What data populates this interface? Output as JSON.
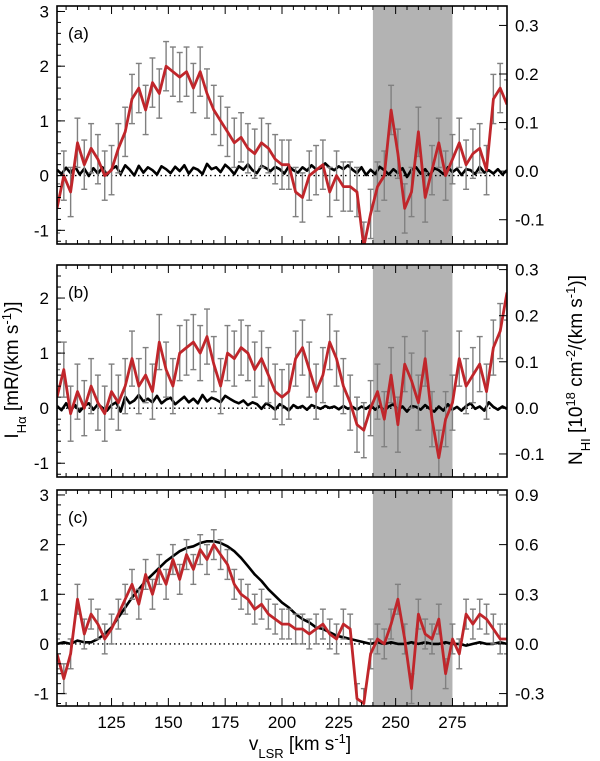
{
  "chart_data": [
    {
      "type": "line",
      "panel_label": "(a)",
      "xlim": [
        101,
        299
      ],
      "ylim_left": [
        -1.25,
        3.1
      ],
      "ylim_right": [
        -0.15,
        0.34
      ],
      "left_ticks": [
        -1,
        0,
        1,
        2,
        3
      ],
      "right_ticks": [
        -0.1,
        0.0,
        0.1,
        0.2,
        0.3
      ],
      "right_tick_labels": [
        "-0.1",
        "0.0",
        "0.1",
        "0.2",
        "0.3"
      ],
      "shaded_region": [
        240,
        275
      ],
      "zero_line": true,
      "series": [
        {
          "name": "H-alpha",
          "color": "#c0262b",
          "x": [
            101,
            104,
            107,
            110,
            113,
            116,
            119,
            122,
            125,
            128,
            131,
            134,
            137,
            140,
            143,
            146,
            149,
            152,
            155,
            158,
            161,
            164,
            167,
            170,
            173,
            176,
            179,
            182,
            185,
            188,
            191,
            194,
            197,
            200,
            203,
            206,
            209,
            212,
            215,
            218,
            221,
            224,
            227,
            230,
            233,
            236,
            239,
            242,
            245,
            248,
            251,
            254,
            257,
            260,
            263,
            266,
            269,
            272,
            275,
            278,
            281,
            284,
            287,
            290,
            293,
            296,
            299
          ],
          "y": [
            -0.6,
            0.0,
            -0.3,
            0.6,
            0.2,
            0.5,
            0.3,
            0.0,
            0.1,
            0.5,
            0.8,
            1.4,
            1.6,
            1.2,
            1.7,
            1.5,
            2.0,
            1.9,
            1.8,
            1.9,
            1.6,
            1.9,
            1.5,
            1.2,
            1.0,
            0.8,
            0.6,
            0.7,
            0.5,
            0.4,
            0.6,
            0.5,
            0.3,
            0.2,
            0.2,
            -0.3,
            -0.4,
            0.0,
            0.1,
            0.2,
            -0.3,
            0.0,
            -0.2,
            -0.2,
            -0.3,
            -1.3,
            -0.7,
            -0.2,
            0.0,
            1.2,
            0.4,
            -0.6,
            -0.3,
            0.8,
            -0.4,
            0.1,
            0.6,
            0.0,
            0.3,
            0.6,
            0.2,
            0.4,
            0.5,
            0.1,
            1.4,
            1.6,
            1.3
          ],
          "err": 0.45
        },
        {
          "name": "HI",
          "color": "#000000",
          "x": [
            101,
            103,
            105,
            107,
            109,
            111,
            113,
            115,
            117,
            119,
            121,
            123,
            125,
            127,
            129,
            131,
            133,
            135,
            137,
            139,
            141,
            143,
            145,
            147,
            149,
            151,
            153,
            155,
            157,
            159,
            161,
            163,
            165,
            167,
            169,
            171,
            173,
            175,
            177,
            179,
            181,
            183,
            185,
            187,
            189,
            191,
            193,
            195,
            197,
            199,
            201,
            203,
            205,
            207,
            209,
            211,
            213,
            215,
            217,
            219,
            221,
            223,
            225,
            227,
            229,
            231,
            233,
            235,
            237,
            239,
            241,
            243,
            245,
            247,
            249,
            251,
            253,
            255,
            257,
            259,
            261,
            263,
            265,
            267,
            269,
            271,
            273,
            275,
            277,
            279,
            281,
            283,
            285,
            287,
            289,
            291,
            293,
            295,
            297,
            299
          ],
          "y": [
            0.003,
            -0.006,
            0.007,
            -0.004,
            0.009,
            -0.007,
            0.005,
            -0.01,
            0.006,
            -0.005,
            0.008,
            -0.008,
            0.004,
            0.01,
            -0.006,
            0.012,
            0.003,
            -0.009,
            0.011,
            -0.003,
            0.008,
            0.002,
            -0.007,
            0.01,
            0.004,
            -0.004,
            0.009,
            0.0,
            0.012,
            -0.005,
            0.007,
            0.003,
            -0.006,
            0.015,
            0.004,
            0.008,
            -0.002,
            0.013,
            0.005,
            -0.006,
            0.01,
            0.003,
            0.014,
            0.002,
            -0.004,
            0.011,
            0.006,
            0.0,
            0.009,
            0.004,
            -0.005,
            0.01,
            0.002,
            -0.003,
            0.008,
            0.001,
            0.012,
            0.004,
            0.006,
            0.016,
            0.007,
            0.002,
            0.01,
            0.004,
            0.012,
            0.003,
            -0.004,
            0.008,
            -0.008,
            0.003,
            -0.006,
            0.009,
            0.002,
            -0.007,
            0.004,
            -0.004,
            0.006,
            -0.012,
            0.003,
            0.008,
            -0.005,
            0.004,
            -0.009,
            0.006,
            0.002,
            -0.006,
            0.008,
            -0.002,
            0.005,
            -0.008,
            0.004,
            0.002,
            -0.006,
            0.009,
            -0.003,
            0.002,
            -0.005,
            0.004,
            -0.007,
            0.002
          ]
        }
      ]
    },
    {
      "type": "line",
      "panel_label": "(b)",
      "xlim": [
        101,
        299
      ],
      "ylim_left": [
        -1.25,
        2.6
      ],
      "ylim_right": [
        -0.15,
        0.31
      ],
      "left_ticks": [
        -1,
        0,
        1,
        2
      ],
      "right_ticks": [
        -0.1,
        0.0,
        0.1,
        0.2,
        0.3
      ],
      "right_tick_labels": [
        "-0.1",
        "0.0",
        "0.1",
        "0.2",
        "0.3"
      ],
      "shaded_region": [
        240,
        275
      ],
      "zero_line": true,
      "series": [
        {
          "name": "H-alpha",
          "color": "#c0262b",
          "x": [
            101,
            104,
            107,
            110,
            113,
            116,
            119,
            122,
            125,
            128,
            131,
            134,
            137,
            140,
            143,
            146,
            149,
            152,
            155,
            158,
            161,
            164,
            167,
            170,
            173,
            176,
            179,
            182,
            185,
            188,
            191,
            194,
            197,
            200,
            203,
            206,
            209,
            212,
            215,
            218,
            221,
            224,
            227,
            230,
            233,
            236,
            239,
            242,
            245,
            248,
            251,
            254,
            257,
            260,
            263,
            266,
            269,
            272,
            275,
            278,
            281,
            284,
            287,
            290,
            293,
            296,
            299
          ],
          "y": [
            0.2,
            0.7,
            -0.1,
            0.3,
            0.0,
            0.4,
            0.1,
            -0.1,
            0.3,
            0.1,
            0.4,
            0.9,
            0.4,
            0.6,
            0.3,
            1.2,
            0.7,
            0.4,
            1.0,
            1.1,
            1.2,
            1.0,
            1.3,
            0.8,
            0.4,
            1.0,
            0.9,
            1.1,
            1.0,
            0.7,
            0.9,
            0.6,
            0.3,
            0.2,
            0.3,
            0.9,
            1.1,
            0.7,
            0.3,
            0.6,
            1.2,
            0.9,
            0.4,
            0.1,
            -0.3,
            -0.4,
            0.0,
            0.3,
            -0.2,
            0.6,
            -0.3,
            0.8,
            0.5,
            0.1,
            0.9,
            -0.2,
            -0.9,
            -0.2,
            0.1,
            0.9,
            0.4,
            0.6,
            0.8,
            0.3,
            1.1,
            1.4,
            2.1
          ],
          "err": 0.5
        },
        {
          "name": "HI",
          "color": "#000000",
          "x": [
            101,
            103,
            105,
            107,
            109,
            111,
            113,
            115,
            117,
            119,
            121,
            123,
            125,
            127,
            129,
            131,
            133,
            135,
            137,
            139,
            141,
            143,
            145,
            147,
            149,
            151,
            153,
            155,
            157,
            159,
            161,
            163,
            165,
            167,
            169,
            171,
            173,
            175,
            177,
            179,
            181,
            183,
            185,
            187,
            189,
            191,
            193,
            195,
            197,
            199,
            201,
            203,
            205,
            207,
            209,
            211,
            213,
            215,
            217,
            219,
            221,
            223,
            225,
            227,
            229,
            231,
            233,
            235,
            237,
            239,
            241,
            243,
            245,
            247,
            249,
            251,
            253,
            255,
            257,
            259,
            261,
            263,
            265,
            267,
            269,
            271,
            273,
            275,
            277,
            279,
            281,
            283,
            285,
            287,
            289,
            291,
            293,
            295,
            297,
            299
          ],
          "y": [
            0.004,
            -0.005,
            0.01,
            -0.006,
            0.006,
            -0.008,
            0.004,
            0.01,
            -0.004,
            0.008,
            0.0,
            -0.006,
            0.006,
            0.012,
            -0.008,
            0.024,
            0.01,
            0.016,
            0.028,
            0.014,
            0.02,
            0.012,
            0.026,
            0.01,
            0.018,
            0.022,
            0.008,
            0.016,
            0.024,
            0.012,
            0.02,
            0.01,
            0.028,
            0.014,
            0.022,
            0.018,
            0.012,
            0.026,
            0.02,
            0.014,
            0.01,
            0.016,
            0.006,
            0.012,
            0.008,
            -0.002,
            0.01,
            0.004,
            -0.004,
            0.008,
            0.002,
            -0.006,
            0.006,
            0.0,
            0.004,
            -0.004,
            0.006,
            0.002,
            -0.002,
            0.004,
            0.0,
            0.003,
            -0.003,
            0.004,
            -0.002,
            0.002,
            -0.004,
            0.003,
            -0.002,
            0.006,
            -0.004,
            0.004,
            -0.006,
            0.003,
            0.008,
            -0.004,
            0.003,
            -0.008,
            0.004,
            0.002,
            -0.004,
            0.006,
            -0.002,
            -0.008,
            0.003,
            -0.006,
            0.008,
            -0.004,
            0.002,
            -0.006,
            0.004,
            0.01,
            -0.002,
            0.003,
            -0.006,
            0.012,
            0.002,
            -0.004,
            0.003,
            -0.002
          ]
        }
      ]
    },
    {
      "type": "line",
      "panel_label": "(c)",
      "xlim": [
        101,
        299
      ],
      "ylim_left": [
        -1.25,
        3.1
      ],
      "ylim_right": [
        -0.375,
        0.93
      ],
      "left_ticks": [
        -1,
        0,
        1,
        2,
        3
      ],
      "right_ticks": [
        -0.3,
        0.0,
        0.3,
        0.6,
        0.9
      ],
      "right_tick_labels": [
        "-0.3",
        "0.0",
        "0.3",
        "0.6",
        "0.9"
      ],
      "shaded_region": [
        240,
        275
      ],
      "zero_line": true,
      "xticks": [
        125,
        150,
        175,
        200,
        225,
        250,
        275
      ],
      "xlabel": "v",
      "xlabel_sub": "LSR",
      "xlabel_units": " [km s",
      "xlabel_sup": "-1",
      "xlabel_end": "]",
      "series": [
        {
          "name": "H-alpha",
          "color": "#c0262b",
          "x": [
            101,
            104,
            107,
            110,
            113,
            116,
            119,
            122,
            125,
            128,
            131,
            134,
            137,
            140,
            143,
            146,
            149,
            152,
            155,
            158,
            161,
            164,
            167,
            170,
            173,
            176,
            179,
            182,
            185,
            188,
            191,
            194,
            197,
            200,
            203,
            206,
            209,
            212,
            215,
            218,
            221,
            224,
            227,
            230,
            233,
            236,
            239,
            242,
            245,
            248,
            251,
            254,
            257,
            260,
            263,
            266,
            269,
            272,
            275,
            278,
            281,
            284,
            287,
            290,
            293,
            296,
            299
          ],
          "y": [
            -0.2,
            -0.7,
            -0.2,
            0.9,
            0.2,
            0.6,
            0.4,
            0.1,
            0.3,
            0.6,
            0.9,
            1.2,
            0.8,
            1.4,
            1.0,
            1.5,
            1.2,
            1.7,
            1.3,
            1.8,
            1.5,
            1.9,
            1.7,
            2.0,
            1.8,
            1.6,
            1.2,
            1.0,
            0.9,
            0.7,
            0.8,
            0.6,
            0.5,
            0.4,
            0.4,
            0.3,
            0.3,
            0.2,
            0.3,
            0.4,
            0.2,
            0.1,
            0.4,
            0.3,
            -1.1,
            -1.2,
            -0.2,
            0.1,
            0.0,
            0.4,
            0.9,
            0.1,
            -0.9,
            0.6,
            0.2,
            0.1,
            0.5,
            -0.6,
            0.1,
            -0.2,
            0.6,
            0.4,
            0.6,
            0.5,
            0.3,
            0.1,
            0.1
          ],
          "err": 0.3
        },
        {
          "name": "HI",
          "color": "#000000",
          "x": [
            101,
            104,
            107,
            110,
            113,
            116,
            119,
            122,
            125,
            128,
            131,
            134,
            137,
            140,
            143,
            146,
            149,
            152,
            155,
            158,
            161,
            164,
            167,
            170,
            173,
            176,
            179,
            182,
            185,
            188,
            191,
            194,
            197,
            200,
            203,
            206,
            209,
            212,
            215,
            218,
            221,
            224,
            227,
            230,
            233,
            236,
            239,
            242,
            245,
            248,
            251,
            254,
            257,
            260,
            263,
            266,
            269,
            272,
            275,
            278,
            281,
            284,
            287,
            290,
            293,
            296,
            299
          ],
          "y": [
            0.0,
            0.01,
            0.0,
            0.02,
            0.01,
            0.01,
            0.03,
            0.06,
            0.1,
            0.16,
            0.22,
            0.28,
            0.33,
            0.38,
            0.42,
            0.46,
            0.5,
            0.53,
            0.56,
            0.58,
            0.59,
            0.61,
            0.62,
            0.62,
            0.61,
            0.59,
            0.56,
            0.52,
            0.47,
            0.42,
            0.38,
            0.33,
            0.29,
            0.25,
            0.22,
            0.18,
            0.15,
            0.13,
            0.1,
            0.09,
            0.07,
            0.05,
            0.04,
            0.03,
            0.02,
            0.01,
            0.0,
            0.01,
            0.0,
            0.01,
            0.0,
            0.0,
            0.01,
            0.0,
            0.01,
            0.0,
            0.0,
            0.01,
            0.0,
            0.0,
            -0.01,
            0.0,
            0.01,
            0.0,
            0.0,
            0.01,
            0.0
          ]
        }
      ]
    }
  ],
  "axis_titles": {
    "left_main": "I",
    "left_sub": "Hα",
    "left_units": " [mR/(km s",
    "left_sup": "-1",
    "left_end": ")]",
    "right_main": "N",
    "right_sub": "HI",
    "right_units_a": " [10",
    "right_sup_a": "18",
    "right_units_b": " cm",
    "right_sup_b": "-2",
    "right_units_c": "/(km s",
    "right_sup_c": "-1",
    "right_end": ")]"
  },
  "xlabel": {
    "main": "v",
    "sub": "LSR",
    "units": " [km s",
    "sup": "-1",
    "end": "]"
  }
}
